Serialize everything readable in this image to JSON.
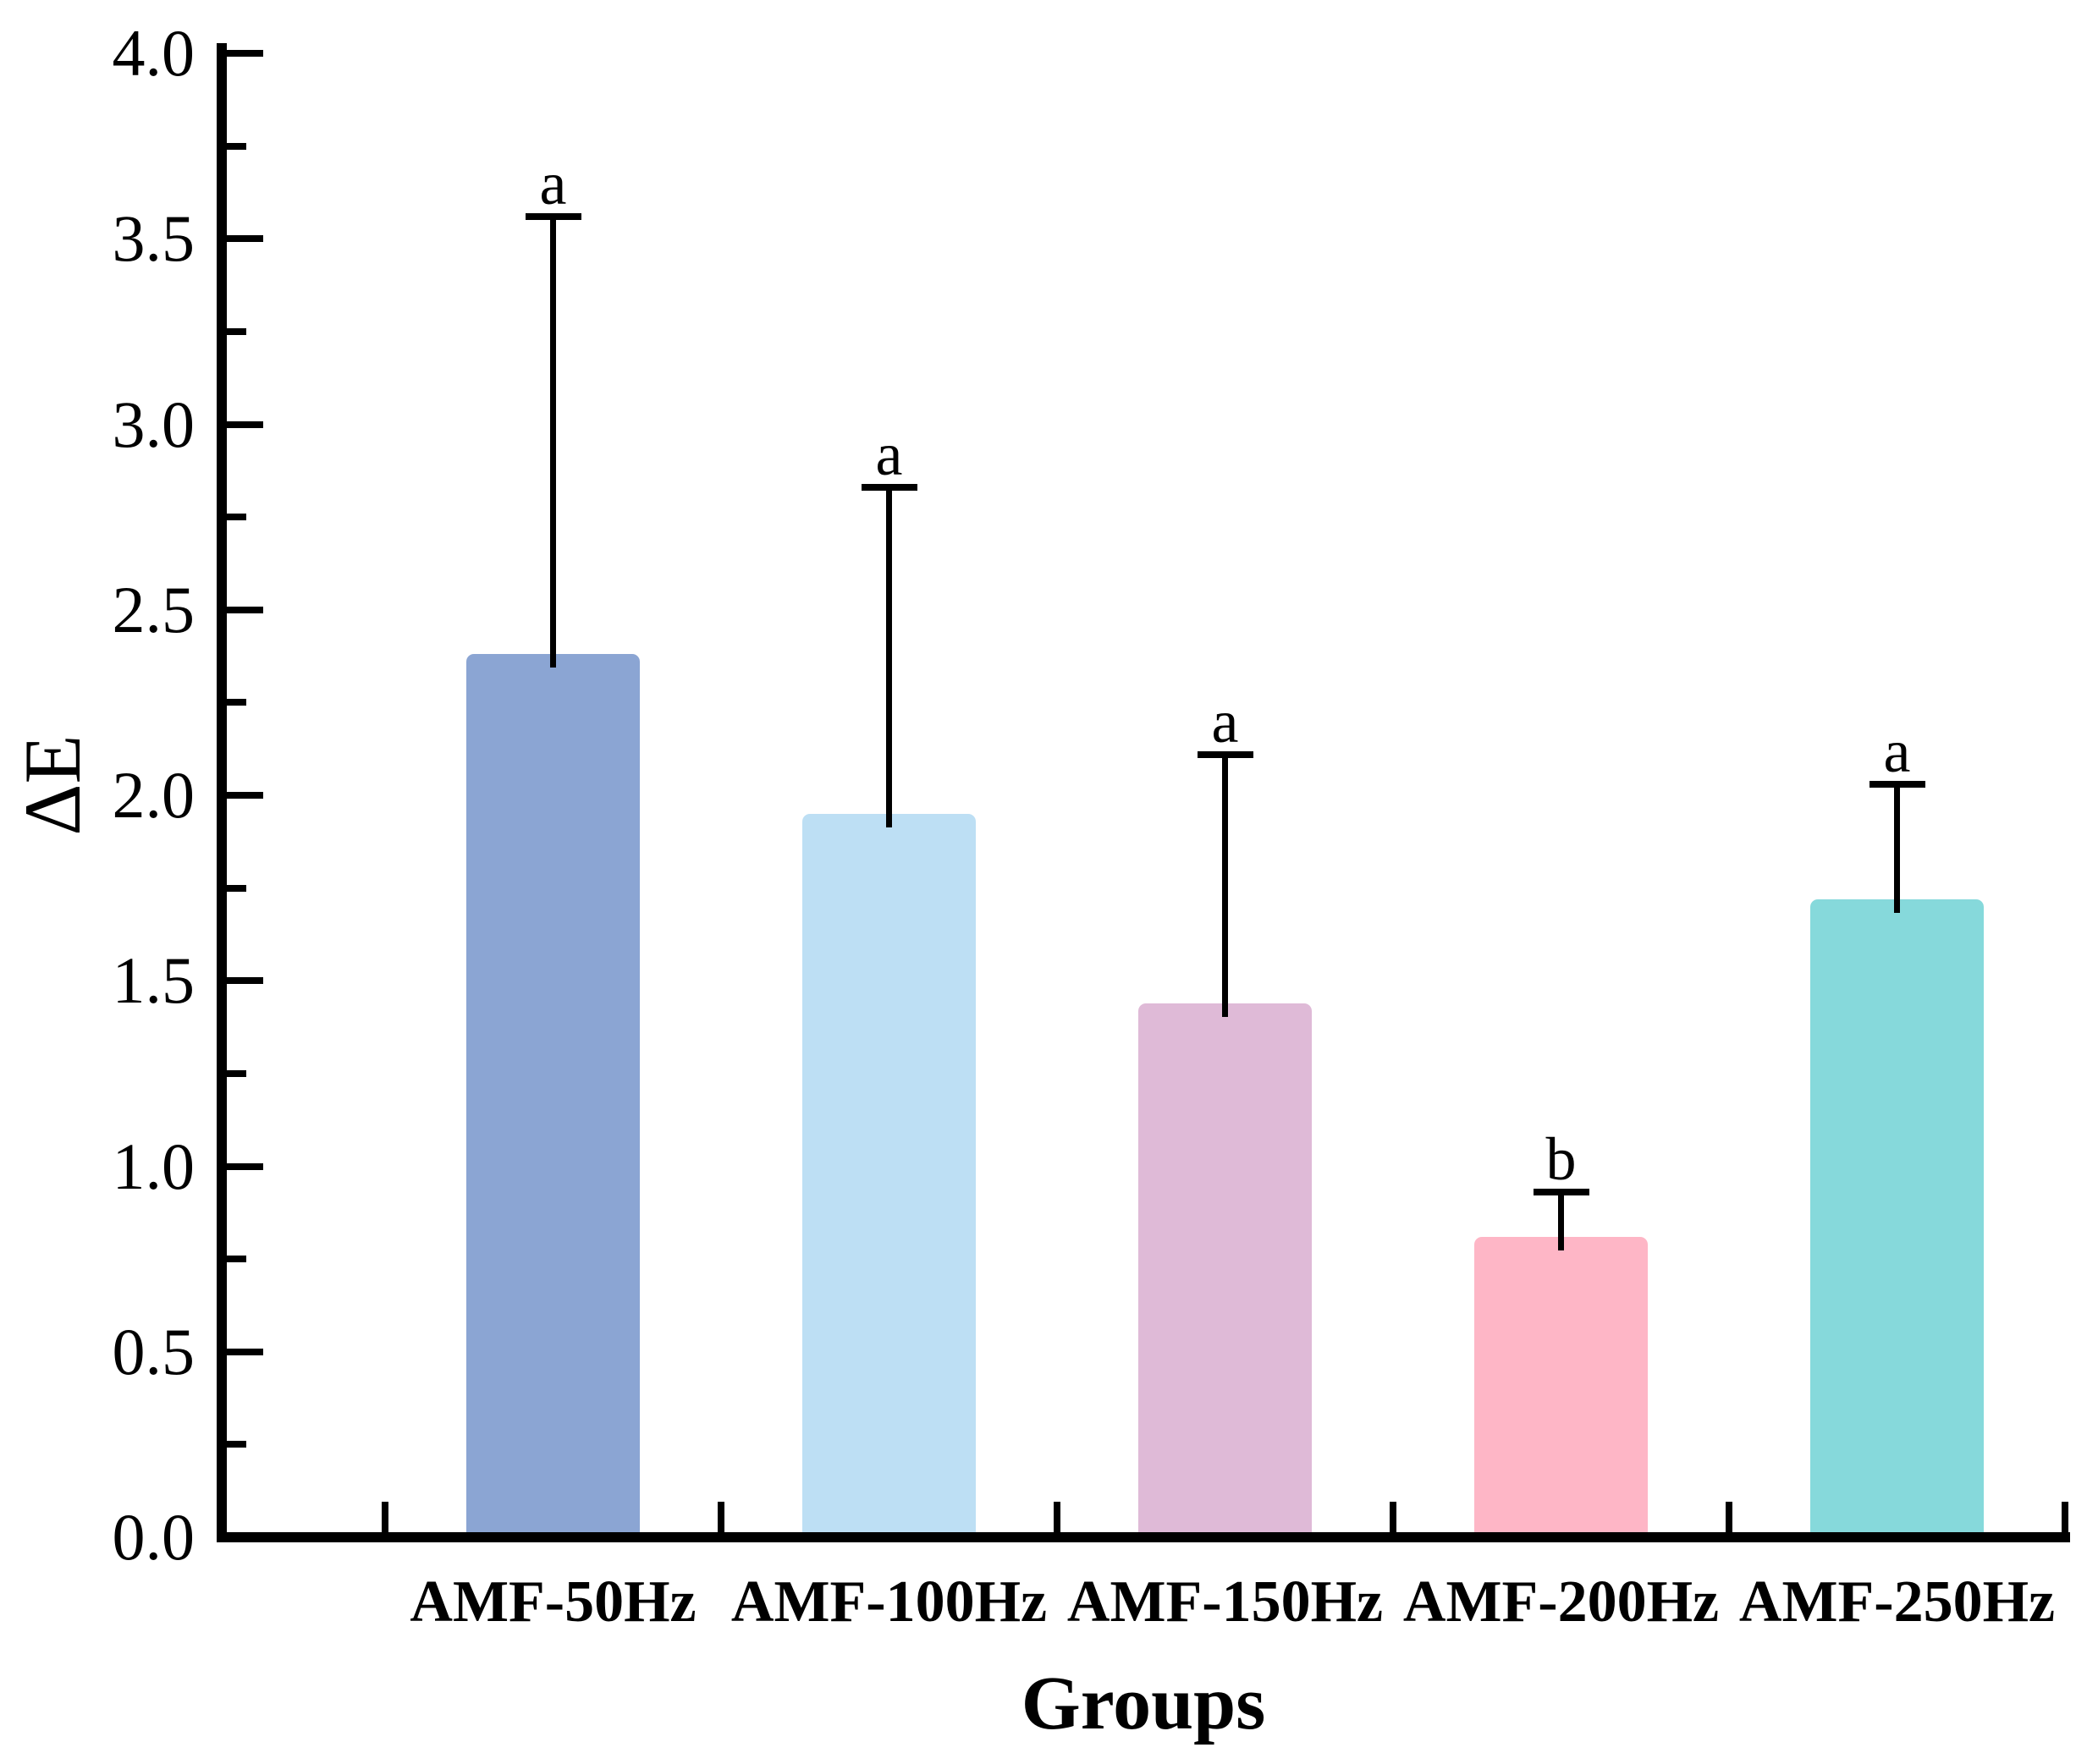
{
  "chart_data": {
    "type": "bar",
    "title": "",
    "xlabel": "Groups",
    "ylabel": "ΔE",
    "categories": [
      "AMF-50Hz",
      "AMF-100Hz",
      "AMF-150Hz",
      "AMF-200Hz",
      "AMF-250Hz"
    ],
    "values": [
      2.38,
      1.95,
      1.44,
      0.81,
      1.72
    ],
    "errors_plus": [
      1.18,
      0.88,
      0.67,
      0.12,
      0.31
    ],
    "sig_letters": [
      "a",
      "a",
      "a",
      "b",
      "a"
    ],
    "bar_colors": [
      "#8BA5D3",
      "#BDDFF4",
      "#DFBAD7",
      "#FEB6C6",
      "#86D9DB"
    ],
    "error_bar_color": "#000000",
    "axis_color": "#000000",
    "ylim": [
      0,
      4
    ],
    "y_major_step": 0.5,
    "y_minor_step": 0.25,
    "y_tick_labels": [
      "0.0",
      "0.5",
      "1.0",
      "1.5",
      "2.0",
      "2.5",
      "3.0",
      "3.5",
      "4.0"
    ],
    "grid": false,
    "legend": null
  }
}
